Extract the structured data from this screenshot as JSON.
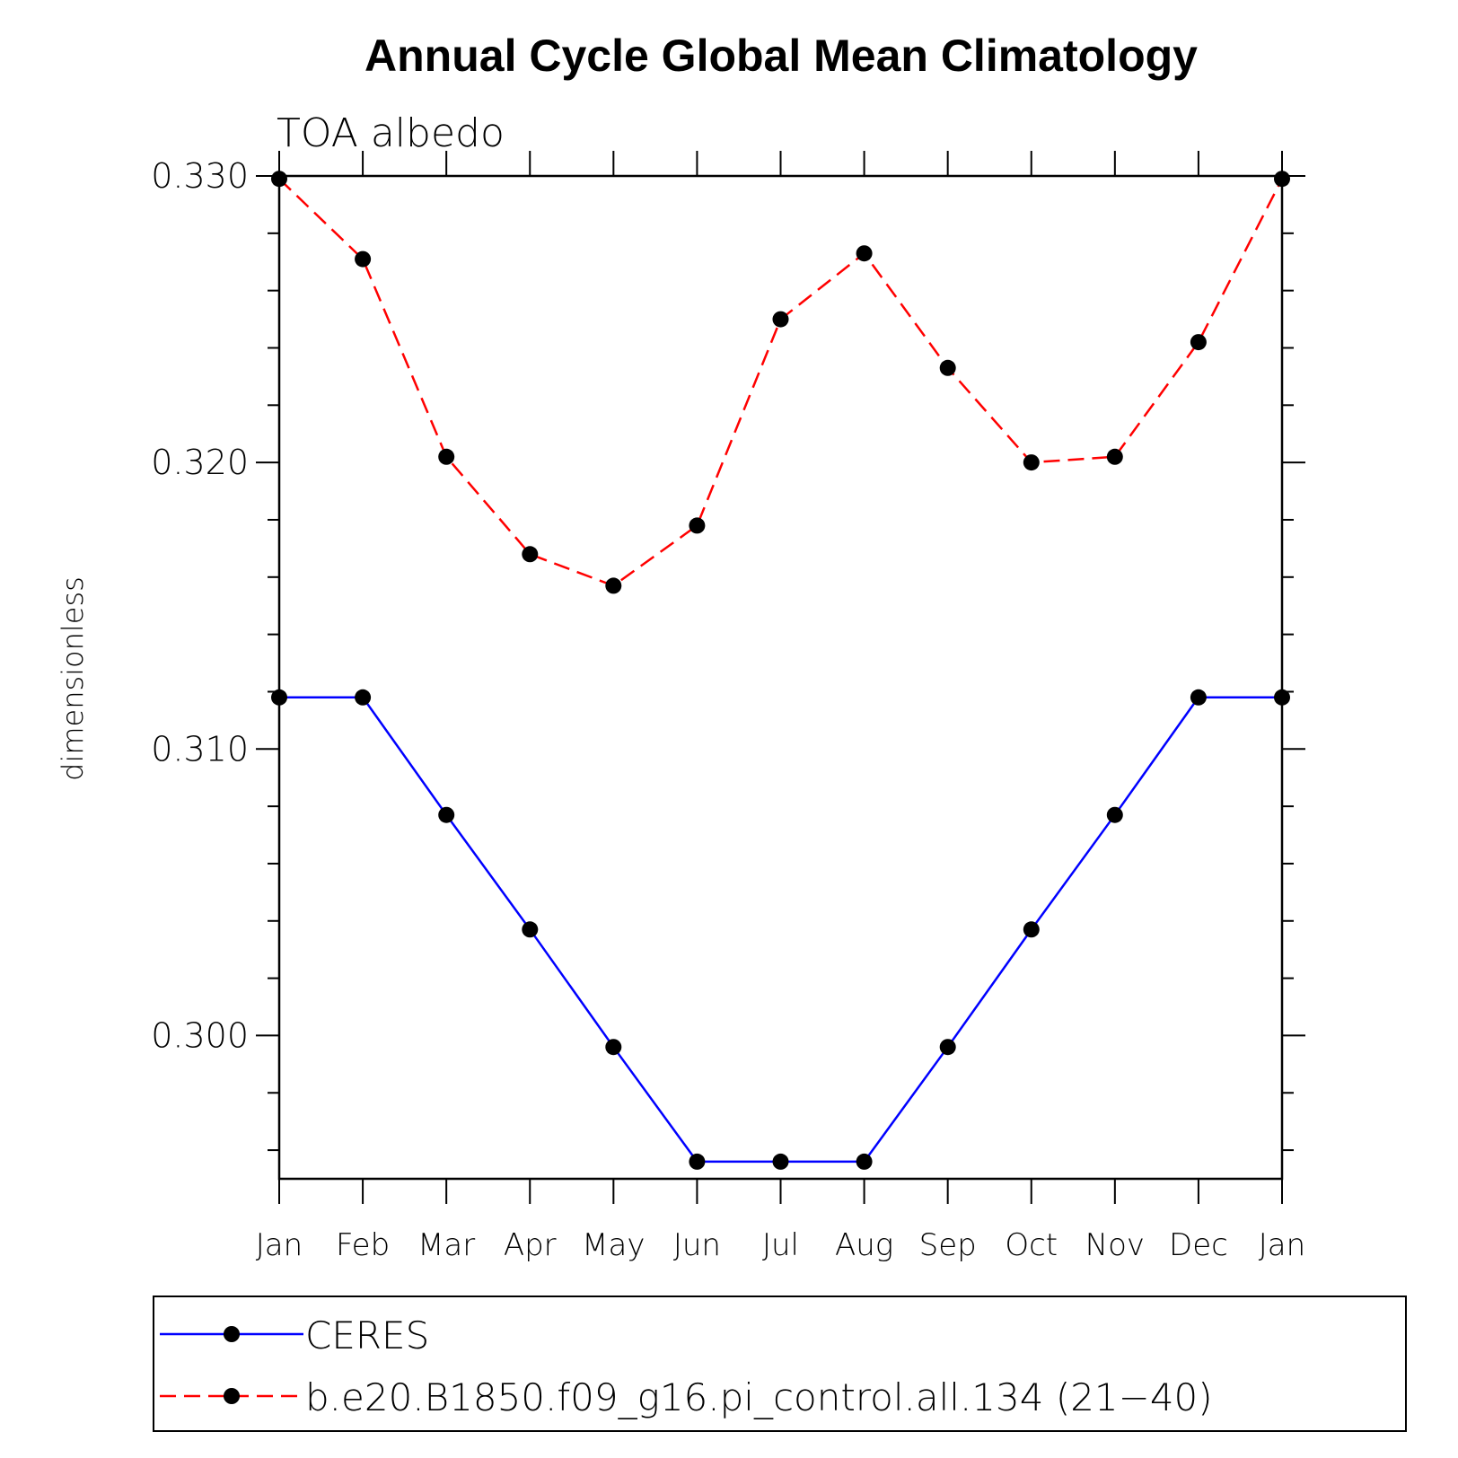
{
  "chart_data": {
    "type": "line",
    "title": "Annual Cycle Global Mean Climatology",
    "subtitle": "TOA albedo",
    "ylabel": "dimensionless",
    "xlabel": "",
    "categories": [
      "Jan",
      "Feb",
      "Mar",
      "Apr",
      "May",
      "Jun",
      "Jul",
      "Aug",
      "Sep",
      "Oct",
      "Nov",
      "Dec",
      "Jan"
    ],
    "ylim": [
      0.295,
      0.33
    ],
    "yticks": [
      "0.300",
      "0.310",
      "0.320",
      "0.330"
    ],
    "ytick_values": [
      0.3,
      0.31,
      0.32,
      0.33
    ],
    "legend_position": "bottom",
    "series": [
      {
        "name": "CERES",
        "color": "#0000ff",
        "dash": "solid",
        "marker": "filled-circle",
        "values": [
          0.3118,
          0.3118,
          0.3077,
          0.3037,
          0.2996,
          0.2956,
          0.2956,
          0.2956,
          0.2996,
          0.3037,
          0.3077,
          0.3118,
          0.3118
        ]
      },
      {
        "name": "b.e20.B1850.f09_g16.pi_control.all.134 (21−40)",
        "color": "#ff0000",
        "dash": "dashed",
        "marker": "filled-circle",
        "values": [
          0.3299,
          0.3271,
          0.3202,
          0.3168,
          0.3157,
          0.3178,
          0.325,
          0.3273,
          0.3233,
          0.32,
          0.3202,
          0.3242,
          0.3299
        ]
      }
    ]
  }
}
